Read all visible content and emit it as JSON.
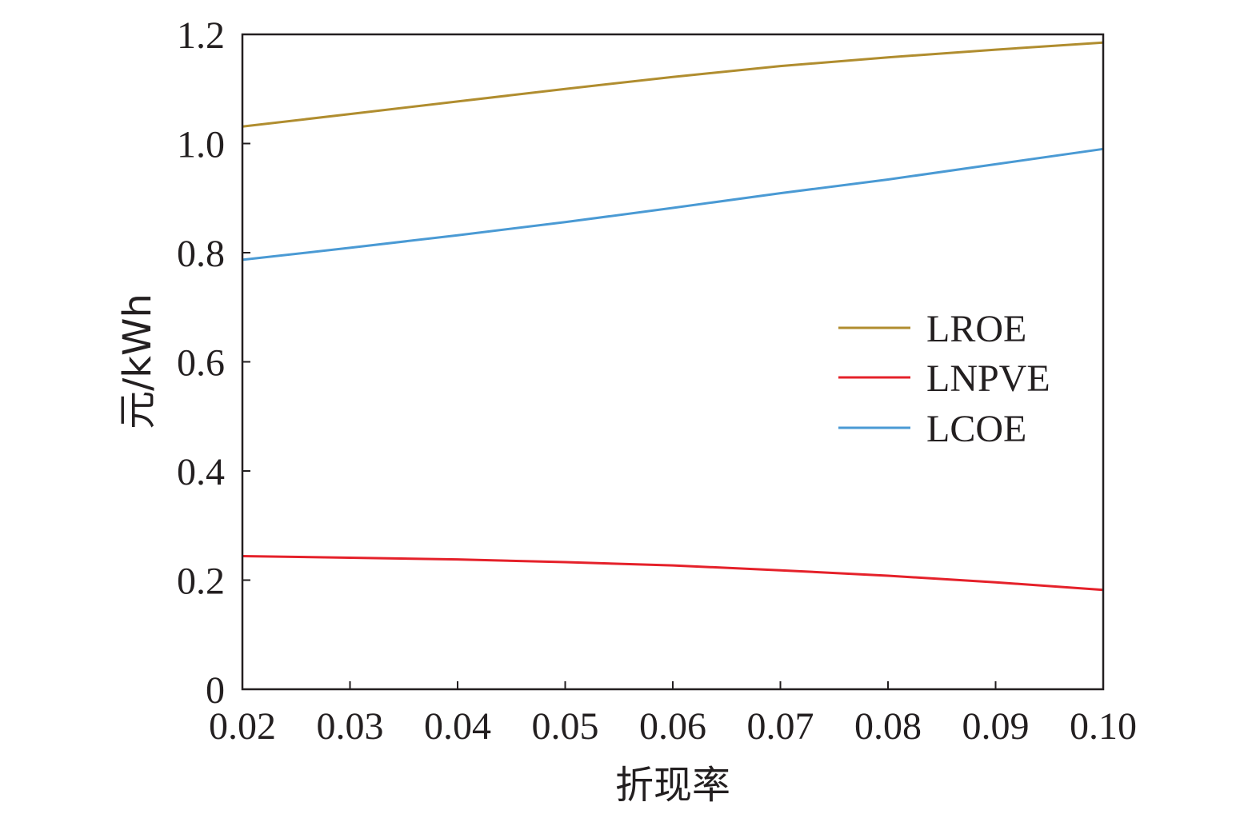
{
  "chart_data": {
    "type": "line",
    "xlabel": "折现率",
    "ylabel": "元/kWh",
    "xlim": [
      0.02,
      0.1
    ],
    "ylim": [
      0,
      1.2
    ],
    "xticks": [
      0.02,
      0.03,
      0.04,
      0.05,
      0.06,
      0.07,
      0.08,
      0.09,
      0.1
    ],
    "xtick_labels": [
      "0.02",
      "0.03",
      "0.04",
      "0.05",
      "0.06",
      "0.07",
      "0.08",
      "0.09",
      "0.10"
    ],
    "yticks": [
      0,
      0.2,
      0.4,
      0.6,
      0.8,
      1.0,
      1.2
    ],
    "ytick_labels": [
      "0",
      "0.2",
      "0.4",
      "0.6",
      "0.8",
      "1.0",
      "1.2"
    ],
    "legend_position": "right-middle",
    "grid": false,
    "x": [
      0.02,
      0.03,
      0.04,
      0.05,
      0.06,
      0.07,
      0.08,
      0.09,
      0.1
    ],
    "series": [
      {
        "name": "LROE",
        "color": "#b08d2f",
        "values": [
          1.031,
          1.054,
          1.077,
          1.1,
          1.122,
          1.142,
          1.158,
          1.172,
          1.185
        ]
      },
      {
        "name": "LNPVE",
        "color": "#e5212a",
        "values": [
          0.244,
          0.241,
          0.238,
          0.233,
          0.227,
          0.218,
          0.208,
          0.196,
          0.182
        ]
      },
      {
        "name": "LCOE",
        "color": "#4a9ad4",
        "values": [
          0.787,
          0.809,
          0.832,
          0.856,
          0.882,
          0.909,
          0.934,
          0.962,
          0.99
        ]
      }
    ]
  }
}
